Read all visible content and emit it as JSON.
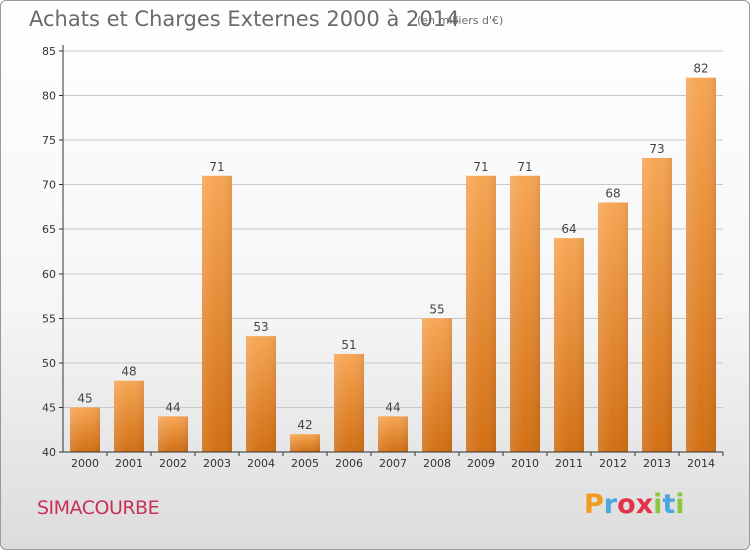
{
  "header": {
    "title": "Achats et Charges Externes 2000 à 2014",
    "unit": "(en milliers d'€)"
  },
  "footer": {
    "commune": "SIMACOURBE",
    "logo_letters": [
      "P",
      "r",
      "o",
      "x",
      "i",
      "t",
      "i"
    ],
    "logo_colors": [
      "#f29a1e",
      "#4aa8de",
      "#e4324a",
      "#e4324a",
      "#8cc63f",
      "#4aa8de",
      "#8cc63f"
    ]
  },
  "colors": {
    "bar_top": "#f7a654",
    "bar_bottom": "#d26f14",
    "grid": "#c8c8c8",
    "axis": "#333333"
  },
  "chart_data": {
    "type": "bar",
    "title": "Achats et Charges Externes 2000 à 2014",
    "subtitle": "(en milliers d'€)",
    "categories": [
      "2000",
      "2001",
      "2002",
      "2003",
      "2004",
      "2005",
      "2006",
      "2007",
      "2008",
      "2009",
      "2010",
      "2011",
      "2012",
      "2013",
      "2014"
    ],
    "values": [
      45,
      48,
      44,
      71,
      53,
      42,
      51,
      44,
      55,
      71,
      71,
      64,
      68,
      73,
      82
    ],
    "ylim": [
      40,
      85
    ],
    "yticks": [
      40,
      45,
      50,
      55,
      60,
      65,
      70,
      75,
      80,
      85
    ],
    "grid": true,
    "xlabel": "",
    "ylabel": ""
  }
}
